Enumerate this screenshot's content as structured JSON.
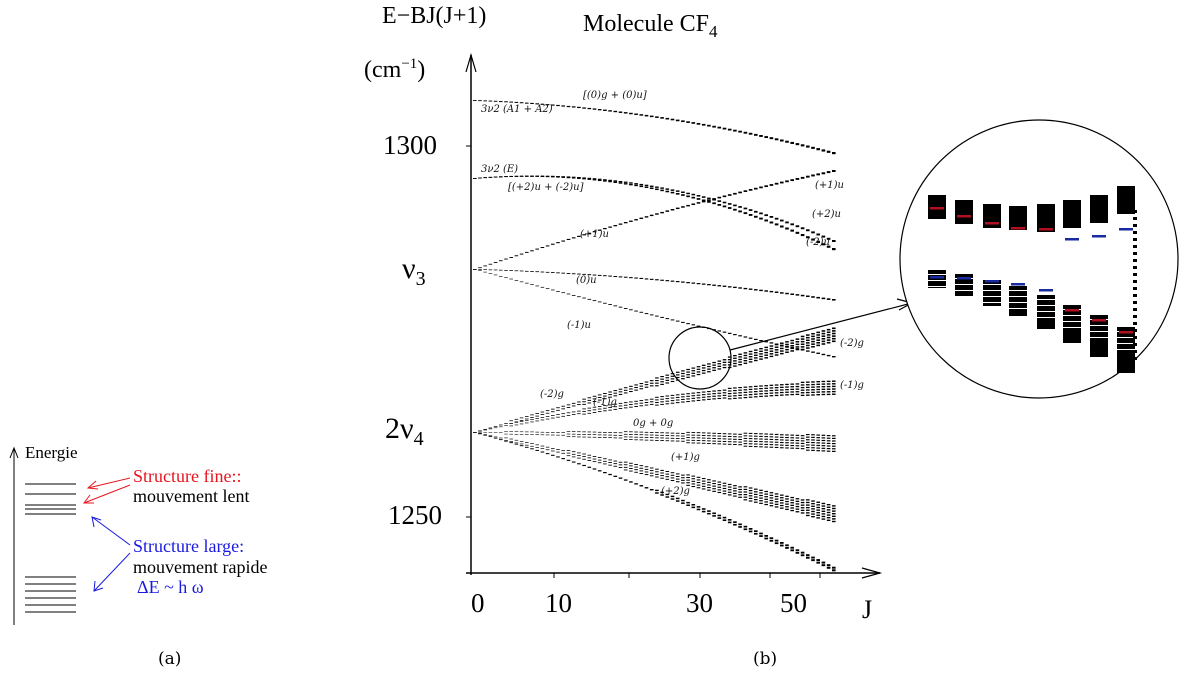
{
  "panel_a": {
    "energy_label": "Energie",
    "fine_structure_label": "Structure fine::",
    "slow_motion_label": "mouvement lent",
    "large_structure_label": "Structure large:",
    "fast_motion_label": "mouvement rapide",
    "energy_gap_label": "ΔE ~  h  ω",
    "caption": "(a)",
    "colors": {
      "fine": "#e8141e",
      "large": "#1a1ae0"
    }
  },
  "panel_b": {
    "title_main": "Molecule CF",
    "title_sub": "4",
    "y_axis_label": "E−BJ(J+1)",
    "y_axis_unit": "(cm",
    "y_axis_unit_exp": "−1",
    "y_axis_unit_close": ")",
    "x_axis_label": "J",
    "y_ticks": [
      {
        "label": "1300",
        "value": 1300
      },
      {
        "label": "ν",
        "sub": "3",
        "value": "nu3"
      },
      {
        "label": "2ν",
        "sub": "4",
        "value": "2nu4"
      },
      {
        "label": "1250",
        "value": 1250
      }
    ],
    "x_ticks": [
      "0",
      "10",
      "30",
      "50"
    ],
    "branch_labels": [
      "[(0)g + (0)u]",
      "3ν2 (A1 + A2)",
      "3ν2 (E)",
      "[(+2)u + (-2)u]",
      "(+1)u",
      "(+2)u",
      "(-2)u",
      "(+1)u",
      "(0)u",
      "(-1)u",
      "(-2)g",
      "(-1)g",
      "(-2)g",
      "(-1)g",
      "0g + 0g",
      "(+1)g",
      "(+2)g"
    ],
    "caption": "(b)"
  }
}
